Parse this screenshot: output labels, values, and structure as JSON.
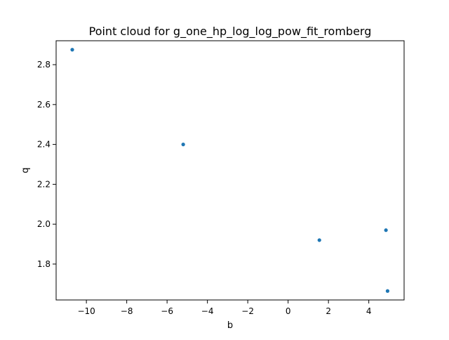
{
  "chart_data": {
    "type": "scatter",
    "title": "Point cloud for g_one_hp_log_log_pow_fit_romberg",
    "xlabel": "b",
    "ylabel": "q",
    "xlim": [
      -11.5,
      5.75
    ],
    "ylim": [
      1.62,
      2.92
    ],
    "xticks": [
      -10,
      -8,
      -6,
      -4,
      -2,
      0,
      2,
      4
    ],
    "xtick_labels": [
      "−10",
      "−8",
      "−6",
      "−4",
      "−2",
      "0",
      "2",
      "4"
    ],
    "yticks": [
      1.8,
      2.0,
      2.2,
      2.4,
      2.6,
      2.8
    ],
    "ytick_labels": [
      "1.8",
      "2.0",
      "2.2",
      "2.4",
      "2.6",
      "2.8"
    ],
    "grid": false,
    "legend": "none",
    "marker_color": "#1f77b4",
    "points": [
      {
        "x": -10.7,
        "y": 2.875
      },
      {
        "x": -5.2,
        "y": 2.4
      },
      {
        "x": 1.55,
        "y": 1.92
      },
      {
        "x": 4.85,
        "y": 1.97
      },
      {
        "x": 4.93,
        "y": 1.665
      }
    ]
  }
}
